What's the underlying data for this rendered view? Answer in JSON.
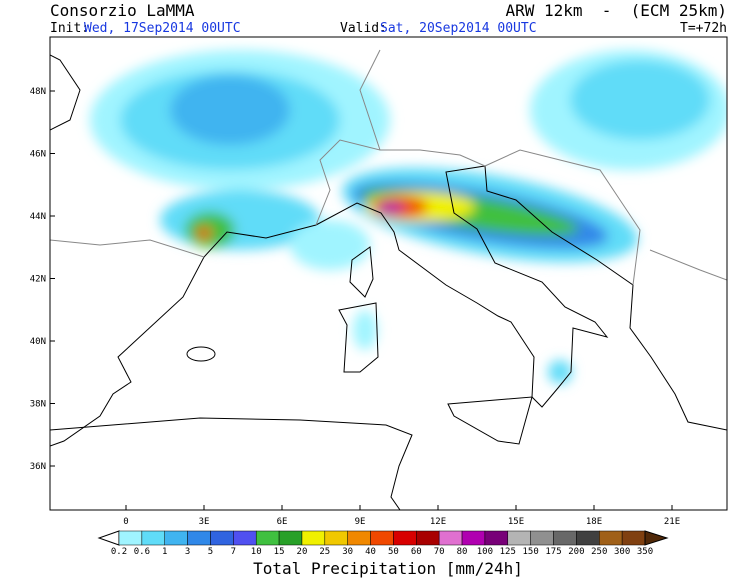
{
  "header": {
    "title": "Consorzio LaMMA",
    "model": "ARW 12km  -  (ECM 25km)",
    "init_label": "Init:",
    "init": "Wed, 17Sep2014 00UTC",
    "valid_label": "Valid:",
    "valid": "Sat, 20Sep2014 00UTC",
    "lead": "T=+72h"
  },
  "map": {
    "lat_labels": [
      "48N",
      "46N",
      "44N",
      "42N",
      "40N",
      "38N",
      "36N"
    ],
    "lon_labels": [
      "0",
      "3E",
      "6E",
      "9E",
      "12E",
      "15E",
      "18E",
      "21E"
    ]
  },
  "colorbar": {
    "title": "Total Precipitation [mm/24h]",
    "labels": [
      "0.2",
      "0.6",
      "1",
      "3",
      "5",
      "7",
      "10",
      "15",
      "20",
      "25",
      "30",
      "40",
      "50",
      "60",
      "70",
      "80",
      "100",
      "125",
      "150",
      "175",
      "200",
      "250",
      "300",
      "350"
    ],
    "colors": [
      "#ffffff",
      "#a0f4ff",
      "#60dcf8",
      "#40b4f0",
      "#3088e8",
      "#3064e0",
      "#5050f0",
      "#40c040",
      "#28a028",
      "#f0f000",
      "#f0c800",
      "#f08800",
      "#f04800",
      "#d80000",
      "#a80000",
      "#e070d0",
      "#b000b0",
      "#780078",
      "#b4b4b4",
      "#909090",
      "#686868",
      "#404040",
      "#a06018",
      "#804010",
      "#603010",
      "#502808"
    ]
  }
}
